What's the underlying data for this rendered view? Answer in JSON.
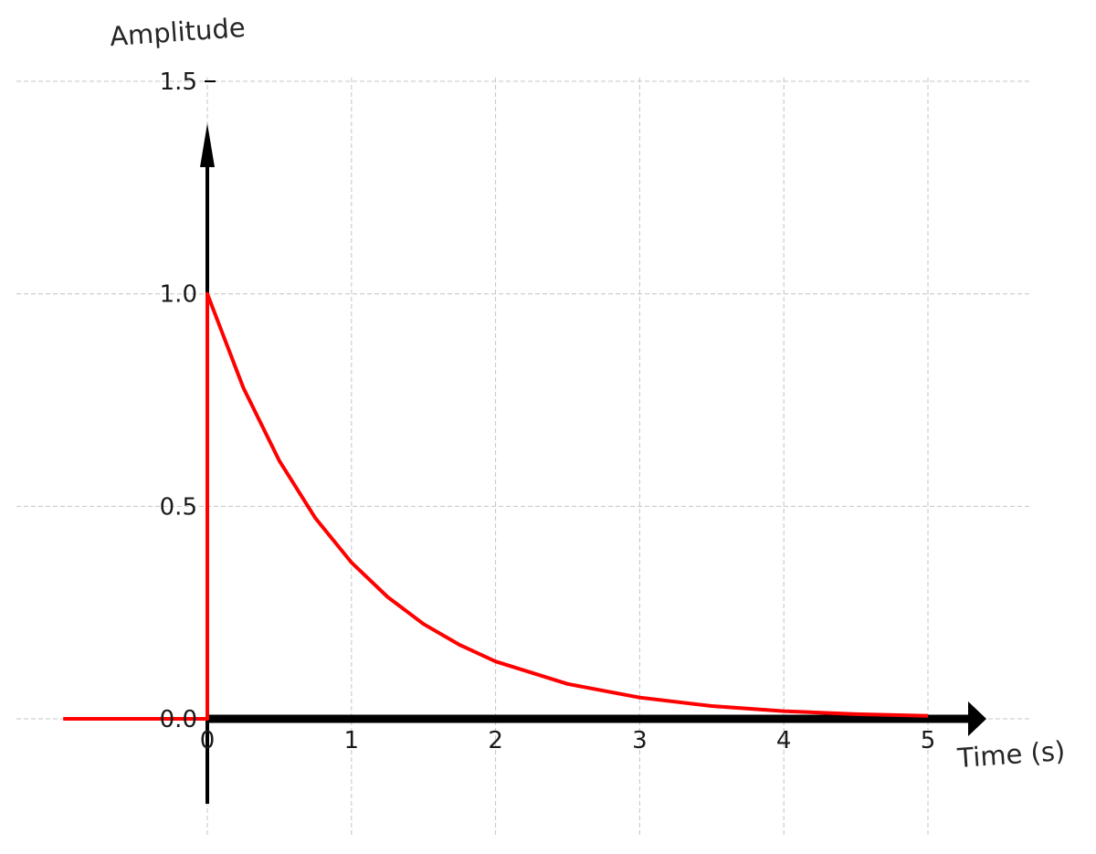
{
  "chart_data": {
    "type": "line",
    "xlabel": "Time (s)",
    "ylabel": "Amplitude",
    "xlim": [
      -1,
      5
    ],
    "ylim": [
      -0.3,
      1.5
    ],
    "x_ticks": [
      0,
      1,
      2,
      3,
      4,
      5
    ],
    "y_ticks": [
      "0.0",
      "0.5",
      "1.0",
      "1.5"
    ],
    "grid": true,
    "series": [
      {
        "color": "#ff0000",
        "x": [
          -1,
          0,
          0,
          0.25,
          0.5,
          0.75,
          1,
          1.25,
          1.5,
          1.75,
          2,
          2.5,
          3,
          3.5,
          4,
          4.5,
          5
        ],
        "y": [
          0,
          0,
          1,
          0.779,
          0.607,
          0.472,
          0.368,
          0.287,
          0.223,
          0.174,
          0.135,
          0.082,
          0.05,
          0.03,
          0.018,
          0.011,
          0.007
        ]
      }
    ]
  }
}
